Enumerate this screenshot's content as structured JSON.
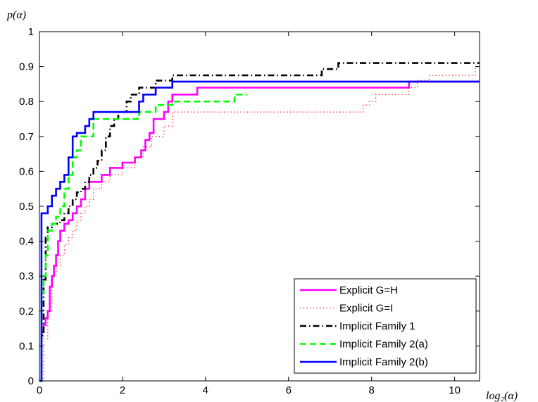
{
  "chart_data": {
    "type": "line",
    "title": "",
    "xlabel": "log₂(α)",
    "ylabel": "p(α)",
    "xlim": [
      0,
      10.6
    ],
    "ylim": [
      0,
      1
    ],
    "xticks": [
      0,
      2,
      4,
      6,
      8,
      10
    ],
    "yticks": [
      0,
      0.1,
      0.2,
      0.3,
      0.4,
      0.5,
      0.6,
      0.7,
      0.8,
      0.9,
      1
    ],
    "grid": false,
    "legend_position": "bottom-right",
    "step": true,
    "series": [
      {
        "name": "Explicit G=H",
        "color": "#ff00ff",
        "style": "solid",
        "x": [
          0,
          0.05,
          0.1,
          0.15,
          0.2,
          0.25,
          0.3,
          0.35,
          0.4,
          0.45,
          0.5,
          0.6,
          0.7,
          0.8,
          0.9,
          1.0,
          1.1,
          1.2,
          1.3,
          1.5,
          1.7,
          2.0,
          2.3,
          2.45,
          2.55,
          2.65,
          2.75,
          3.0,
          3.1,
          3.2,
          3.8,
          8.9,
          10.6
        ],
        "y": [
          0,
          0.14,
          0.16,
          0.18,
          0.2,
          0.27,
          0.3,
          0.33,
          0.36,
          0.4,
          0.43,
          0.45,
          0.46,
          0.48,
          0.5,
          0.52,
          0.55,
          0.57,
          0.57,
          0.59,
          0.61,
          0.625,
          0.64,
          0.66,
          0.69,
          0.71,
          0.75,
          0.77,
          0.8,
          0.82,
          0.84,
          0.857,
          0.857
        ]
      },
      {
        "name": "Explicit G=I",
        "color": "#ff0000",
        "style": "dotted",
        "x": [
          0,
          0.1,
          0.2,
          0.3,
          0.4,
          0.5,
          0.6,
          0.7,
          0.8,
          0.9,
          1.0,
          1.1,
          1.2,
          1.3,
          1.5,
          1.7,
          2.0,
          2.3,
          2.5,
          2.7,
          3.0,
          3.2,
          7.8,
          7.95,
          8.1,
          8.9,
          9.1,
          9.4,
          10.5,
          10.6
        ],
        "y": [
          0,
          0.12,
          0.2,
          0.3,
          0.33,
          0.36,
          0.39,
          0.41,
          0.43,
          0.46,
          0.48,
          0.5,
          0.52,
          0.55,
          0.57,
          0.59,
          0.61,
          0.64,
          0.67,
          0.7,
          0.73,
          0.77,
          0.79,
          0.8,
          0.82,
          0.84,
          0.86,
          0.875,
          0.9,
          0.9
        ]
      },
      {
        "name": "Implicit Family 1",
        "color": "#000000",
        "style": "dashdot",
        "x": [
          0,
          0.05,
          0.1,
          0.15,
          0.2,
          0.3,
          0.4,
          0.5,
          0.6,
          0.7,
          0.8,
          0.9,
          1.0,
          1.1,
          1.2,
          1.3,
          1.4,
          1.5,
          1.6,
          1.7,
          1.8,
          1.9,
          2.0,
          2.1,
          2.2,
          2.4,
          2.6,
          2.8,
          3.0,
          3.2,
          6.8,
          7.2,
          10.6
        ],
        "y": [
          0,
          0.13,
          0.29,
          0.41,
          0.44,
          0.45,
          0.45,
          0.46,
          0.48,
          0.5,
          0.52,
          0.54,
          0.55,
          0.57,
          0.59,
          0.61,
          0.63,
          0.66,
          0.7,
          0.73,
          0.75,
          0.77,
          0.77,
          0.8,
          0.82,
          0.84,
          0.84,
          0.86,
          0.86,
          0.875,
          0.893,
          0.91,
          0.91
        ]
      },
      {
        "name": "Implicit Family 2(a)",
        "color": "#00ff00",
        "style": "dashed",
        "x": [
          0,
          0.05,
          0.1,
          0.15,
          0.2,
          0.3,
          0.4,
          0.5,
          0.6,
          0.7,
          0.8,
          0.9,
          1.0,
          1.1,
          1.3,
          2.0,
          2.2,
          2.4,
          2.6,
          2.8,
          3.2,
          4.7,
          4.9,
          5.0
        ],
        "y": [
          0,
          0.25,
          0.3,
          0.36,
          0.43,
          0.45,
          0.47,
          0.5,
          0.55,
          0.59,
          0.64,
          0.66,
          0.7,
          0.7,
          0.75,
          0.75,
          0.75,
          0.77,
          0.77,
          0.79,
          0.8,
          0.82,
          0.82,
          0.82
        ]
      },
      {
        "name": "Implicit Family 2(b)",
        "color": "#0000ff",
        "style": "solid",
        "x": [
          0,
          0.05,
          0.1,
          0.2,
          0.3,
          0.4,
          0.5,
          0.6,
          0.7,
          0.8,
          0.9,
          1.0,
          1.1,
          1.2,
          1.3,
          1.5,
          2.0,
          2.4,
          2.5,
          2.8,
          3.1,
          3.2,
          10.6
        ],
        "y": [
          0,
          0.48,
          0.48,
          0.5,
          0.53,
          0.55,
          0.57,
          0.59,
          0.64,
          0.7,
          0.71,
          0.71,
          0.73,
          0.75,
          0.77,
          0.77,
          0.77,
          0.8,
          0.82,
          0.84,
          0.84,
          0.857,
          0.857
        ]
      }
    ]
  }
}
